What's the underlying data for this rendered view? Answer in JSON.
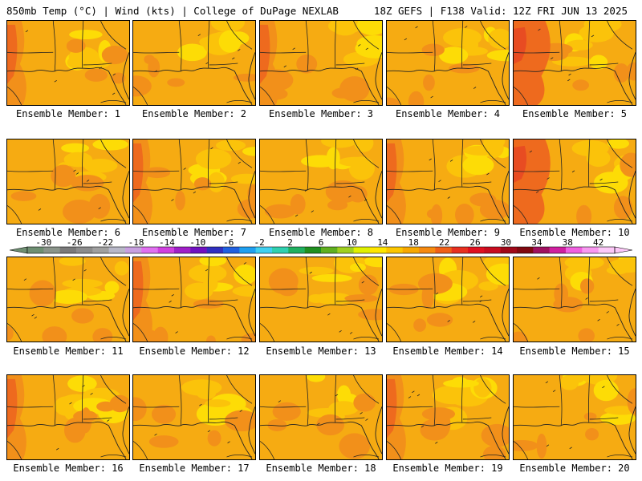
{
  "header": {
    "title_left": "850mb Temp (°C) | Wind (kts) | College of DuPage NEXLAB",
    "title_right": "18Z GEFS | F138 Valid: 12Z FRI JUN 13 2025"
  },
  "members": [
    {
      "label": "Ensemble Member: 1",
      "style": "warm"
    },
    {
      "label": "Ensemble Member: 2",
      "style": "mild"
    },
    {
      "label": "Ensemble Member: 3",
      "style": "warm"
    },
    {
      "label": "Ensemble Member: 4",
      "style": "mild"
    },
    {
      "label": "Ensemble Member: 5",
      "style": "hot"
    },
    {
      "label": "Ensemble Member: 6",
      "style": "mild"
    },
    {
      "label": "Ensemble Member: 7",
      "style": "warm"
    },
    {
      "label": "Ensemble Member: 8",
      "style": "mild"
    },
    {
      "label": "Ensemble Member: 9",
      "style": "warm"
    },
    {
      "label": "Ensemble Member: 10",
      "style": "hot"
    },
    {
      "label": "Ensemble Member: 11",
      "style": "mild"
    },
    {
      "label": "Ensemble Member: 12",
      "style": "warm"
    },
    {
      "label": "Ensemble Member: 13",
      "style": "mild"
    },
    {
      "label": "Ensemble Member: 14",
      "style": "mild"
    },
    {
      "label": "Ensemble Member: 15",
      "style": "mild"
    },
    {
      "label": "Ensemble Member: 16",
      "style": "warm"
    },
    {
      "label": "Ensemble Member: 17",
      "style": "mild"
    },
    {
      "label": "Ensemble Member: 18",
      "style": "mild"
    },
    {
      "label": "Ensemble Member: 19",
      "style": "warm"
    },
    {
      "label": "Ensemble Member: 20",
      "style": "mild"
    }
  ],
  "colorbar": {
    "labels": [
      "-30",
      "-26",
      "-22",
      "-18",
      "-14",
      "-10",
      "-6",
      "-2",
      "2",
      "6",
      "10",
      "14",
      "18",
      "22",
      "26",
      "30",
      "34",
      "38",
      "42"
    ],
    "colors": [
      "#6e8f72",
      "#8a948a",
      "#7a7a7a",
      "#8c8c8c",
      "#a0a0a0",
      "#b8b8c8",
      "#c8a0e0",
      "#e070f0",
      "#d040e0",
      "#a020c8",
      "#7010c0",
      "#3030c0",
      "#2060e0",
      "#20a0f0",
      "#40d0f0",
      "#30d0b0",
      "#20b060",
      "#209020",
      "#60b020",
      "#a0d020",
      "#e0f000",
      "#ffe600",
      "#fcc600",
      "#f8a800",
      "#f68a10",
      "#f06018",
      "#e83020",
      "#e01020",
      "#c80c20",
      "#a00818",
      "#800810",
      "#a01060",
      "#d020a0",
      "#f060e0",
      "#f898f0",
      "#fcc8f8"
    ],
    "fill_colors": {
      "base": "#f6ab12",
      "light": "#fbc30a",
      "yellow": "#fddc06",
      "dark": "#f2901a",
      "hot": "#ee6a1e",
      "hotter": "#e84c22"
    }
  }
}
